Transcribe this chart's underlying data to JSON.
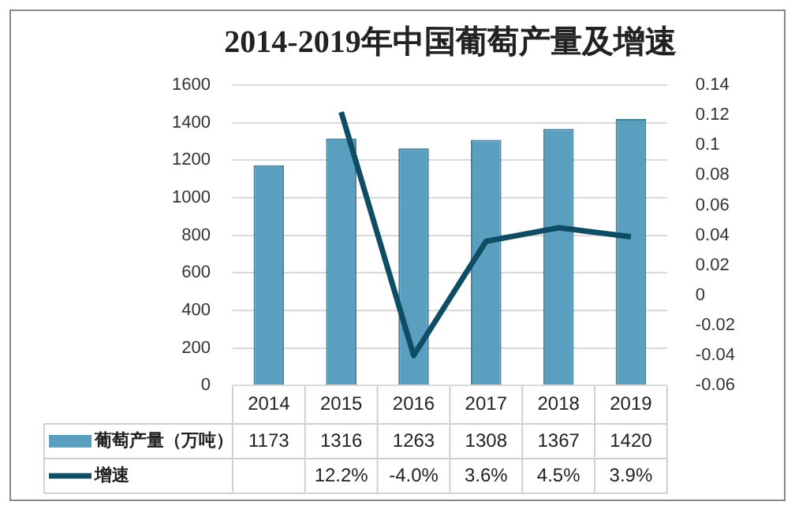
{
  "chart_data": {
    "type": "bar",
    "title": "2014-2019年中国葡萄产量及增速",
    "categories": [
      "2014",
      "2015",
      "2016",
      "2017",
      "2018",
      "2019"
    ],
    "series": [
      {
        "name": "葡萄产量（万吨）",
        "color": "#5b9fc0",
        "values": [
          1173,
          1316,
          1263,
          1308,
          1367,
          1420
        ]
      },
      {
        "name": "增速",
        "type": "line",
        "axis": "y2",
        "color": "#0e4d64",
        "values": [
          null,
          0.122,
          -0.04,
          0.036,
          0.045,
          0.039
        ],
        "value_labels": [
          null,
          "12.2%",
          "-4.0%",
          "3.6%",
          "4.5%",
          "3.9%"
        ]
      }
    ],
    "ylim": [
      0,
      1600
    ],
    "yticks": [
      0,
      200,
      400,
      600,
      800,
      1000,
      1200,
      1400,
      1600
    ],
    "y2lim": [
      -0.06,
      0.14
    ],
    "y2ticks": [
      -0.06,
      -0.04,
      -0.02,
      0,
      0.02,
      0.04,
      0.06,
      0.08,
      0.1,
      0.12,
      0.14
    ],
    "grid": "y",
    "legend": "bottom",
    "data_labels": true,
    "marker": "none"
  }
}
